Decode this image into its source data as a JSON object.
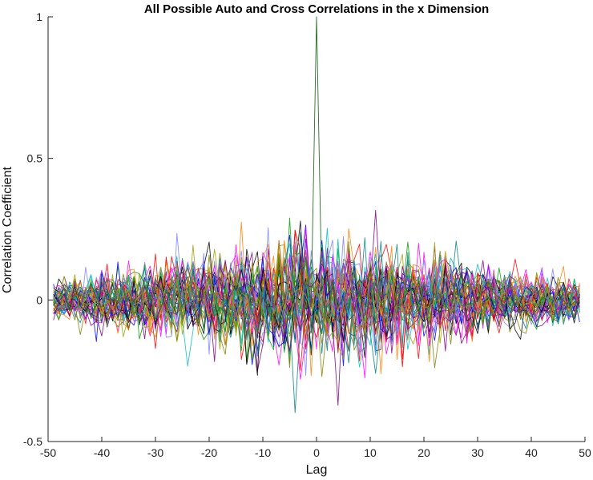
{
  "chart_data": {
    "type": "line",
    "title": "All Possible Auto and Cross Correlations in the x Dimension",
    "xlabel": "Lag",
    "ylabel": "Correlation Coefficient",
    "xlim": [
      -50,
      50
    ],
    "ylim": [
      -0.5,
      1
    ],
    "xticks": [
      "-50",
      "-40",
      "-30",
      "-20",
      "-10",
      "0",
      "10",
      "20",
      "30",
      "40",
      "50"
    ],
    "yticks": [
      "-0.5",
      "0",
      "0.5",
      "1"
    ],
    "grid": false,
    "legend": "none",
    "lag_range": [
      -49,
      49
    ],
    "series_count": 48,
    "peak": {
      "x": 0,
      "y": 1
    },
    "approx_envelope": {
      "center_max": 0.42,
      "center_min": -0.47,
      "edge_max": 0.1,
      "edge_min": -0.12
    },
    "series_colors": [
      "#0000ff",
      "#ff0000",
      "#00a000",
      "#ff00ff",
      "#000000",
      "#00c0c0",
      "#8080ff",
      "#ff8000",
      "#808000",
      "#800080",
      "#008080",
      "#a0a000"
    ]
  }
}
